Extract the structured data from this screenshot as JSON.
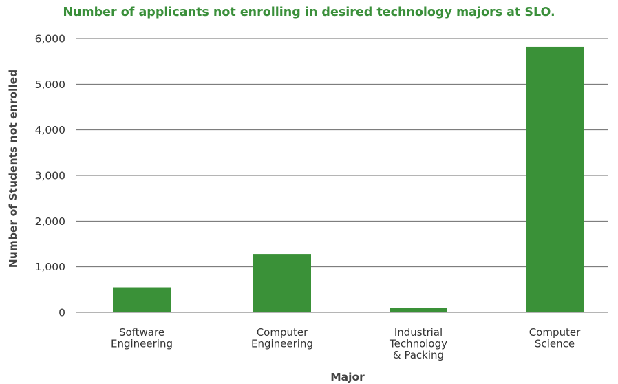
{
  "chart_data": {
    "type": "bar",
    "title": "Number of applicants not enrolling in desired technology majors at SLO.",
    "xlabel": "Major",
    "ylabel": "Number of Students not enrolled",
    "categories": [
      [
        "Software",
        "Engineering"
      ],
      [
        "Computer",
        "Engineering"
      ],
      [
        "Industrial",
        "Technology",
        "& Packing"
      ],
      [
        "Computer",
        "Science"
      ]
    ],
    "values": [
      550,
      1280,
      100,
      5820
    ],
    "ylim": [
      0,
      6000
    ],
    "yticks": [
      0,
      1000,
      2000,
      3000,
      4000,
      5000,
      6000
    ],
    "ytick_labels": [
      "0",
      "1,000",
      "2,000",
      "3,000",
      "4,000",
      "5,000",
      "6,000"
    ],
    "grid": true,
    "bar_color": "#3a9138",
    "title_color": "#3a8f3a",
    "gridline_color": "#6b6b6b"
  }
}
